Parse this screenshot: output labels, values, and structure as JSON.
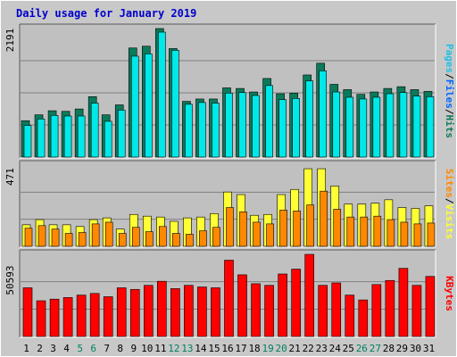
{
  "chart_data": {
    "type": "bar",
    "title": "Daily usage for January 2019",
    "categories": [
      "1",
      "2",
      "3",
      "4",
      "5",
      "6",
      "7",
      "8",
      "9",
      "10",
      "11",
      "12",
      "13",
      "14",
      "15",
      "16",
      "17",
      "18",
      "19",
      "20",
      "21",
      "22",
      "23",
      "24",
      "25",
      "26",
      "27",
      "28",
      "29",
      "30",
      "31"
    ],
    "weekend_days": [
      "5",
      "6",
      "12",
      "13",
      "19",
      "20",
      "26",
      "27"
    ],
    "panels": [
      {
        "id": "top",
        "ymax_label": "2191",
        "ylim": [
          0,
          2191
        ],
        "side_label_parts": [
          "Pages",
          "/",
          "Files",
          "/",
          "Hits"
        ],
        "series": [
          {
            "name": "Hits",
            "color": "#0B7A5A",
            "values": [
              620,
              720,
              790,
              780,
              820,
              1030,
              720,
              890,
              1860,
              1890,
              2191,
              1850,
              950,
              990,
              990,
              1180,
              1170,
              1110,
              1340,
              1080,
              1090,
              1400,
              1600,
              1240,
              1150,
              1070,
              1110,
              1170,
              1200,
              1150,
              1120
            ]
          },
          {
            "name": "Files",
            "color": "#00E8E8",
            "values": [
              540,
              650,
              710,
              700,
              700,
              920,
              610,
              800,
              1720,
              1760,
              2130,
              1820,
              900,
              930,
              920,
              1090,
              1100,
              1050,
              1220,
              980,
              1000,
              1300,
              1470,
              1110,
              1020,
              990,
              1020,
              1080,
              1100,
              1040,
              1030
            ]
          },
          {
            "name": "Pages",
            "color": "#1CC0E8",
            "values": []
          }
        ]
      },
      {
        "id": "mid",
        "ymax_label": "471",
        "ylim": [
          0,
          471
        ],
        "side_label_parts": [
          "Sites",
          "/",
          "Visits"
        ],
        "series": [
          {
            "name": "Visits",
            "color": "#FFFF33",
            "values": [
              125,
              155,
              125,
              125,
              115,
              155,
              165,
              100,
              185,
              175,
              170,
              145,
              165,
              170,
              190,
              315,
              300,
              180,
              185,
              300,
              330,
              450,
              450,
              350,
              245,
              245,
              250,
              270,
              225,
              220,
              235
            ]
          },
          {
            "name": "Sites",
            "color": "#FF8800",
            "values": [
              105,
              120,
              100,
              75,
              80,
              130,
              140,
              75,
              110,
              85,
              115,
              75,
              70,
              90,
              110,
              225,
              200,
              140,
              130,
              210,
              205,
              240,
              320,
              215,
              170,
              170,
              175,
              155,
              140,
              130,
              135
            ]
          }
        ]
      },
      {
        "id": "bot",
        "ymax_label": "50593",
        "ylim": [
          0,
          50593
        ],
        "side_label_parts": [
          "KBytes"
        ],
        "series": [
          {
            "name": "KBytes",
            "color": "#FF0000",
            "values": [
              30000,
              22000,
              23000,
              24000,
              25500,
              26500,
              24500,
              30000,
              29000,
              31500,
              34000,
              29500,
              31500,
              30500,
              30000,
              47000,
              38000,
              32500,
              31500,
              38500,
              41500,
              50593,
              31500,
              33000,
              25500,
              22500,
              32000,
              34500,
              42000,
              31500,
              37000
            ]
          }
        ]
      }
    ]
  },
  "theme": {
    "frame_bg": "#C8C8C8",
    "plot_bg": "#C0C0C0",
    "grid_color": "#808080",
    "title_color": "#0000CC",
    "axis_text_color": "#000000",
    "weekend_text_color": "#008060",
    "slash_color": "#000000",
    "label_colors": {
      "Pages": "#1CC0E8",
      "Files": "#0066FF",
      "Hits": "#0B7A5A",
      "Sites": "#FF8800",
      "Visits": "#FFFF33",
      "KBytes": "#FF0000"
    }
  }
}
